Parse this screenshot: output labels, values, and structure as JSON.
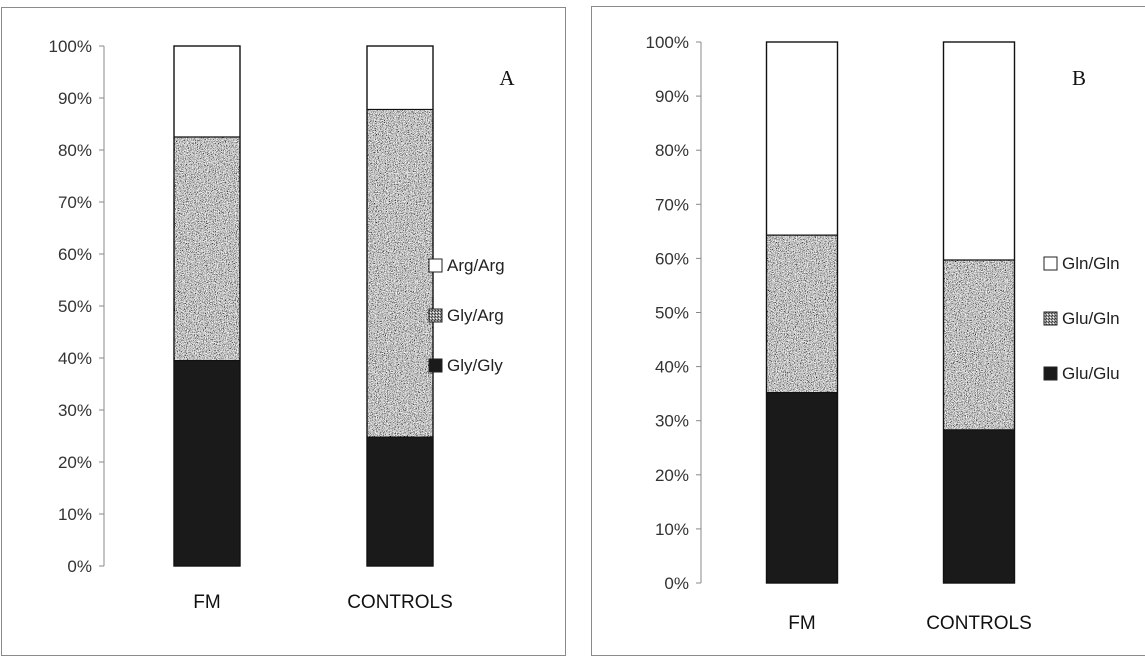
{
  "chart_data": [
    {
      "type": "bar",
      "stacked": true,
      "stack_mode": "percent",
      "panel_label": "A",
      "categories": [
        "FM",
        "CONTROLS"
      ],
      "y_ticks": [
        "0%",
        "10%",
        "20%",
        "30%",
        "40%",
        "50%",
        "60%",
        "70%",
        "80%",
        "90%",
        "100%"
      ],
      "ylim": [
        0,
        100
      ],
      "series": [
        {
          "name": "Gly/Gly",
          "values": [
            39.5,
            24.8
          ],
          "pattern": "solid",
          "color": "#1a1a1a"
        },
        {
          "name": "Gly/Arg",
          "values": [
            43.0,
            63.0
          ],
          "pattern": "speckled",
          "color": "#8c8c8c"
        },
        {
          "name": "Arg/Arg",
          "values": [
            17.5,
            12.2
          ],
          "pattern": "blank",
          "color": "#ffffff"
        }
      ],
      "legend_order": [
        "Arg/Arg",
        "Gly/Arg",
        "Gly/Gly"
      ],
      "legend_position": "right",
      "grid": false
    },
    {
      "type": "bar",
      "stacked": true,
      "stack_mode": "percent",
      "panel_label": "B",
      "categories": [
        "FM",
        "CONTROLS"
      ],
      "y_ticks": [
        "0%",
        "10%",
        "20%",
        "30%",
        "40%",
        "50%",
        "60%",
        "70%",
        "80%",
        "90%",
        "100%"
      ],
      "ylim": [
        0,
        100
      ],
      "series": [
        {
          "name": "Glu/Glu",
          "values": [
            35.2,
            28.3
          ],
          "pattern": "solid",
          "color": "#1a1a1a"
        },
        {
          "name": "Glu/Gln",
          "values": [
            29.1,
            31.4
          ],
          "pattern": "speckled",
          "color": "#8c8c8c"
        },
        {
          "name": "Gln/Gln",
          "values": [
            35.7,
            40.3
          ],
          "pattern": "blank",
          "color": "#ffffff"
        }
      ],
      "legend_order": [
        "Gln/Gln",
        "Glu/Gln",
        "Glu/Glu"
      ],
      "legend_position": "right",
      "grid": false
    }
  ]
}
